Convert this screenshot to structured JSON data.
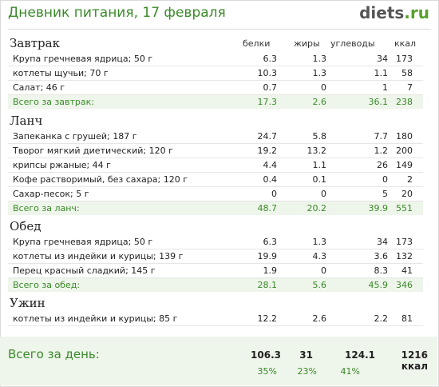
{
  "header": {
    "title": "Дневник питания, 17 февраля",
    "logo_main": "diets",
    "logo_suffix": ".ru"
  },
  "columns": {
    "protein": "белки",
    "fat": "жиры",
    "carbs": "углеводы",
    "kcal": "ккал"
  },
  "meals": [
    {
      "title": "Завтрак",
      "items": [
        {
          "name": "Крупа гречневая ядрица; 50 г",
          "protein": "6.3",
          "fat": "1.3",
          "carbs": "34",
          "kcal": "173"
        },
        {
          "name": "котлеты щучьи; 70 г",
          "protein": "10.3",
          "fat": "1.3",
          "carbs": "1.1",
          "kcal": "58"
        },
        {
          "name": "Салат; 46 г",
          "protein": "0.7",
          "fat": "0",
          "carbs": "1",
          "kcal": "7"
        }
      ],
      "total": {
        "label": "Всего за завтрак:",
        "protein": "17.3",
        "fat": "2.6",
        "carbs": "36.1",
        "kcal": "238"
      }
    },
    {
      "title": "Ланч",
      "items": [
        {
          "name": "Запеканка с грушей; 187 г",
          "protein": "24.7",
          "fat": "5.8",
          "carbs": "7.7",
          "kcal": "180"
        },
        {
          "name": "Творог мягкий диетический; 120 г",
          "protein": "19.2",
          "fat": "13.2",
          "carbs": "1.2",
          "kcal": "200"
        },
        {
          "name": "крипсы ржаные; 44 г",
          "protein": "4.4",
          "fat": "1.1",
          "carbs": "26",
          "kcal": "149"
        },
        {
          "name": "Кофе растворимый, без сахара; 120 г",
          "protein": "0.4",
          "fat": "0.1",
          "carbs": "0",
          "kcal": "2"
        },
        {
          "name": "Сахар-песок; 5 г",
          "protein": "0",
          "fat": "0",
          "carbs": "5",
          "kcal": "20"
        }
      ],
      "total": {
        "label": "Всего за ланч:",
        "protein": "48.7",
        "fat": "20.2",
        "carbs": "39.9",
        "kcal": "551"
      }
    },
    {
      "title": "Обед",
      "items": [
        {
          "name": "Крупа гречневая ядрица; 50 г",
          "protein": "6.3",
          "fat": "1.3",
          "carbs": "34",
          "kcal": "173"
        },
        {
          "name": "котлеты из индейки и курицы; 139 г",
          "protein": "19.9",
          "fat": "4.3",
          "carbs": "3.6",
          "kcal": "132"
        },
        {
          "name": "Перец красный сладкий; 145 г",
          "protein": "1.9",
          "fat": "0",
          "carbs": "8.3",
          "kcal": "41"
        }
      ],
      "total": {
        "label": "Всего за обед:",
        "protein": "28.1",
        "fat": "5.6",
        "carbs": "45.9",
        "kcal": "346"
      }
    },
    {
      "title": "Ужин",
      "items": [
        {
          "name": "котлеты из индейки и курицы; 85 г",
          "protein": "12.2",
          "fat": "2.6",
          "carbs": "2.2",
          "kcal": "81"
        }
      ]
    }
  ],
  "day_total": {
    "label": "Всего за день:",
    "protein": "106.3",
    "fat": "31",
    "carbs": "124.1",
    "kcal": "1216 ккал",
    "protein_pct": "35%",
    "fat_pct": "23%",
    "carbs_pct": "41%"
  },
  "colors": {
    "accent_green": "#3a8a2a",
    "total_row_bg": "#eef5ea"
  }
}
